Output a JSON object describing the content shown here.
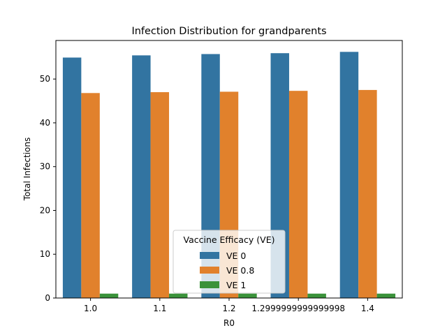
{
  "chart_data": {
    "type": "bar",
    "title": "Infection Distribution for grandparents",
    "xlabel": "R0",
    "ylabel": "Total Infections",
    "categories": [
      "1.0",
      "1.1",
      "1.2",
      "1.2999999999999998",
      "1.4"
    ],
    "series": [
      {
        "name": "VE 0",
        "color": "#3274a1",
        "values": [
          54.9,
          55.4,
          55.7,
          55.9,
          56.2
        ]
      },
      {
        "name": "VE 0.8",
        "color": "#e1812c",
        "values": [
          46.8,
          47.0,
          47.1,
          47.3,
          47.5
        ]
      },
      {
        "name": "VE 1",
        "color": "#3a923a",
        "values": [
          1.0,
          1.0,
          1.0,
          1.0,
          1.0
        ]
      }
    ],
    "ylim": [
      0,
      58.8
    ],
    "yticks": [
      0,
      10,
      20,
      30,
      40,
      50
    ],
    "grid": false,
    "legend": {
      "title": "Vaccine Efficacy (VE)",
      "placement": "lower center"
    }
  }
}
